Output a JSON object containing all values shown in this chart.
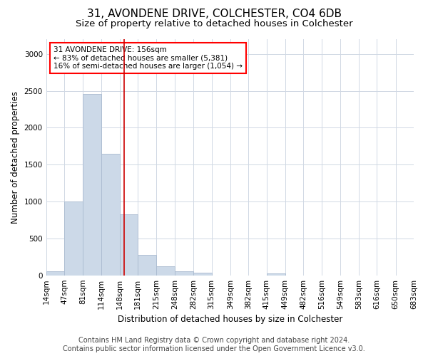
{
  "title": "31, AVONDENE DRIVE, COLCHESTER, CO4 6DB",
  "subtitle": "Size of property relative to detached houses in Colchester",
  "xlabel": "Distribution of detached houses by size in Colchester",
  "ylabel": "Number of detached properties",
  "bar_color": "#ccd9e8",
  "bar_edge_color": "#aabbd0",
  "vline_color": "#cc0000",
  "vline_x": 156,
  "annotation_title": "31 AVONDENE DRIVE: 156sqm",
  "annotation_line1": "← 83% of detached houses are smaller (5,381)",
  "annotation_line2": "16% of semi-detached houses are larger (1,054) →",
  "bin_edges": [
    14,
    47,
    81,
    114,
    148,
    181,
    215,
    248,
    282,
    315,
    349,
    382,
    415,
    449,
    482,
    516,
    549,
    583,
    616,
    650,
    683
  ],
  "bin_counts": [
    55,
    1000,
    2460,
    1650,
    830,
    275,
    120,
    55,
    40,
    0,
    0,
    0,
    30,
    0,
    0,
    0,
    0,
    0,
    0,
    0
  ],
  "ylim": [
    0,
    3200
  ],
  "yticks": [
    0,
    500,
    1000,
    1500,
    2000,
    2500,
    3000
  ],
  "footer_line1": "Contains HM Land Registry data © Crown copyright and database right 2024.",
  "footer_line2": "Contains public sector information licensed under the Open Government Licence v3.0.",
  "background_color": "#ffffff",
  "plot_background": "#ffffff",
  "grid_color": "#d0d8e4",
  "title_fontsize": 11,
  "subtitle_fontsize": 9.5,
  "axis_label_fontsize": 8.5,
  "tick_fontsize": 7.5,
  "footer_fontsize": 7
}
